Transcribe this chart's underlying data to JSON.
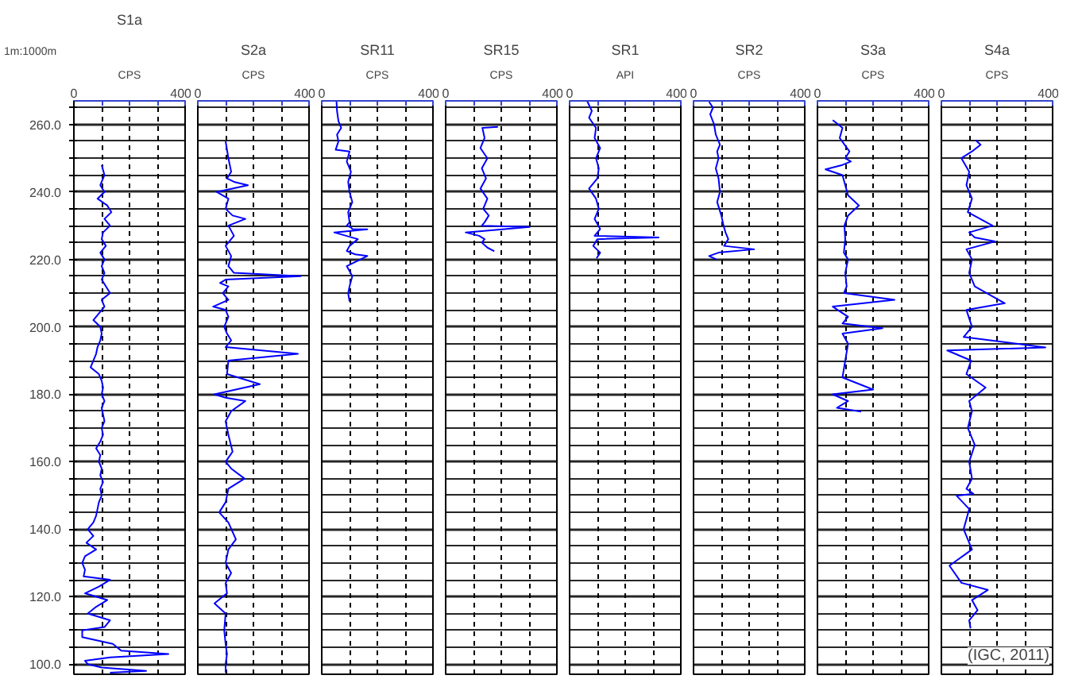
{
  "chart_data": [
    {
      "type": "line",
      "title": "S1a",
      "xlabel": "CPS",
      "xlim": [
        0,
        400
      ],
      "xticks": [
        0,
        {
          "value": 100,
          "label": null
        },
        {
          "value": 200,
          "label": null
        },
        {
          "value": 300,
          "label": null
        },
        400
      ],
      "ylim": [
        97,
        267
      ],
      "yticks": [
        {
          "value": 100,
          "label": "100.0"
        },
        {
          "value": 105,
          "label": null
        },
        {
          "value": 110,
          "label": null
        },
        {
          "value": 115,
          "label": null
        },
        {
          "value": 120,
          "label": "120.0"
        },
        {
          "value": 125,
          "label": null
        },
        {
          "value": 130,
          "label": null
        },
        {
          "value": 135,
          "label": null
        },
        {
          "value": 140,
          "label": "140.0"
        },
        {
          "value": 145,
          "label": null
        },
        {
          "value": 150,
          "label": null
        },
        {
          "value": 155,
          "label": null
        },
        {
          "value": 160,
          "label": "160.0"
        },
        {
          "value": 165,
          "label": null
        },
        {
          "value": 170,
          "label": null
        },
        {
          "value": 175,
          "label": null
        },
        {
          "value": 180,
          "label": "180.0"
        },
        {
          "value": 185,
          "label": null
        },
        {
          "value": 190,
          "label": null
        },
        {
          "value": 195,
          "label": null
        },
        {
          "value": 200,
          "label": "200.0"
        },
        {
          "value": 205,
          "label": null
        },
        {
          "value": 210,
          "label": null
        },
        {
          "value": 215,
          "label": null
        },
        {
          "value": 220,
          "label": "220.0"
        },
        {
          "value": 225,
          "label": null
        },
        {
          "value": 230,
          "label": null
        },
        {
          "value": 235,
          "label": null
        },
        {
          "value": 240,
          "label": "240.0"
        },
        {
          "value": 245,
          "label": null
        },
        {
          "value": 250,
          "label": null
        },
        {
          "value": 255,
          "label": null
        },
        {
          "value": 260,
          "label": "260.0"
        },
        {
          "value": 265,
          "label": null
        }
      ],
      "grid": true,
      "annotations": [
        "1m:1000m"
      ],
      "series": [
        {
          "color": "#0000ff",
          "x": [
            100,
            110,
            95,
            110,
            85,
            120,
            135,
            110,
            130,
            105,
            100,
            115,
            95,
            110,
            100,
            110,
            100,
            115,
            130,
            100,
            110,
            90,
            70,
            95,
            100,
            95,
            85,
            80,
            70,
            60,
            90,
            100,
            105,
            100,
            110,
            100,
            105,
            110,
            100,
            105,
            95,
            80,
            95,
            90,
            100,
            95,
            105,
            95,
            100,
            90,
            85,
            80,
            70,
            50,
            70,
            45,
            80,
            40,
            30,
            40,
            35,
            130,
            90,
            40,
            120,
            80,
            50,
            130,
            110,
            30,
            30,
            140,
            170,
            340,
            130,
            40,
            50,
            100,
            260,
            130
          ],
          "values": [
            248,
            245,
            242,
            240,
            238,
            236,
            234,
            232,
            230,
            228,
            226,
            224,
            222,
            220,
            218,
            216,
            214,
            212,
            210,
            208,
            206,
            204,
            202,
            200,
            198,
            196,
            194,
            192,
            190,
            188,
            186,
            184,
            182,
            180,
            178,
            176,
            174,
            172,
            170,
            168,
            166,
            164,
            162,
            160,
            158,
            156,
            154,
            152,
            150,
            148,
            146,
            144,
            142,
            140,
            138,
            136,
            134,
            132,
            130,
            128,
            126,
            125,
            123,
            121,
            119,
            117,
            115,
            113,
            111,
            110,
            108,
            106,
            104,
            103,
            102,
            101,
            100,
            99,
            98,
            97.5
          ]
        }
      ]
    },
    {
      "type": "line",
      "title": "S2a",
      "xlabel": "CPS",
      "xlim": [
        0,
        400
      ],
      "xticks": [
        0,
        {
          "value": 100,
          "label": null
        },
        {
          "value": 200,
          "label": null
        },
        {
          "value": 300,
          "label": null
        },
        400
      ],
      "ylim": [
        97,
        267
      ],
      "yticks": [
        100,
        105,
        110,
        115,
        120,
        125,
        130,
        135,
        140,
        145,
        150,
        155,
        160,
        165,
        170,
        175,
        180,
        185,
        190,
        195,
        200,
        205,
        210,
        215,
        220,
        225,
        230,
        235,
        240,
        245,
        250,
        255,
        260,
        265
      ],
      "grid": true,
      "tick_labels": "x",
      "series": [
        {
          "color": "#0000ff",
          "x": [
            100,
            110,
            120,
            105,
            130,
            180,
            68,
            110,
            100,
            125,
            171,
            110,
            130,
            100,
            120,
            110,
            130,
            370,
            100,
            80,
            110,
            90,
            110,
            55,
            100,
            110,
            95,
            105,
            120,
            100,
            360,
            110,
            105,
            223,
            60,
            100,
            171,
            120,
            100,
            110,
            125,
            100,
            120,
            168,
            110,
            100,
            77,
            110,
            137,
            110,
            100,
            120,
            100,
            105,
            60,
            100,
            95,
            100,
            105,
            100,
            100
          ],
          "values": [
            255,
            250,
            246,
            244,
            243,
            242,
            240,
            238,
            235,
            233,
            232,
            230,
            227,
            224,
            221,
            218,
            216,
            215,
            214,
            213,
            212,
            210,
            208,
            206,
            205,
            203,
            200,
            198,
            196,
            194,
            192,
            190,
            186,
            183,
            180,
            179,
            178,
            175,
            172,
            168,
            163,
            160,
            158,
            155,
            152,
            148,
            145,
            142,
            137,
            134,
            130,
            127,
            124,
            121,
            118,
            115,
            110,
            106,
            103,
            100,
            97.5
          ]
        }
      ]
    },
    {
      "type": "line",
      "title": "SR11",
      "xlabel": "CPS",
      "xlim": [
        0,
        400
      ],
      "xticks": [
        0,
        {
          "value": 100,
          "label": null
        },
        {
          "value": 200,
          "label": null
        },
        {
          "value": 300,
          "label": null
        },
        400
      ],
      "ylim": [
        97,
        267
      ],
      "yticks": [
        100,
        105,
        110,
        115,
        120,
        125,
        130,
        135,
        140,
        145,
        150,
        155,
        160,
        165,
        170,
        175,
        180,
        185,
        190,
        195,
        200,
        205,
        210,
        215,
        220,
        225,
        230,
        235,
        240,
        245,
        250,
        255,
        260,
        265
      ],
      "grid": true,
      "tick_labels": "x",
      "series": [
        {
          "color": "#0000ff",
          "x": [
            53,
            55,
            60,
            70,
            55,
            60,
            50,
            100,
            90,
            105,
            95,
            100,
            110,
            95,
            100,
            90,
            105,
            110,
            164,
            45,
            130,
            100,
            90,
            120,
            164,
            90,
            110,
            100,
            95,
            100
          ],
          "values": [
            267,
            264,
            261,
            259,
            257,
            255,
            252.5,
            252,
            249,
            246,
            243,
            240,
            237,
            234,
            231,
            230,
            229.5,
            229,
            228.9,
            228,
            226,
            224,
            222.5,
            221.5,
            221,
            218,
            215,
            212,
            210,
            207.5
          ]
        }
      ]
    },
    {
      "type": "line",
      "title": "SR15",
      "xlabel": "CPS",
      "xlim": [
        0,
        400
      ],
      "xticks": [
        0,
        {
          "value": 100,
          "label": null
        },
        {
          "value": 200,
          "label": null
        },
        {
          "value": 300,
          "label": null
        },
        400
      ],
      "ylim": [
        97,
        267
      ],
      "yticks": [
        100,
        105,
        110,
        115,
        120,
        125,
        130,
        135,
        140,
        145,
        150,
        155,
        160,
        165,
        170,
        175,
        180,
        185,
        190,
        195,
        200,
        205,
        210,
        215,
        220,
        225,
        230,
        235,
        240,
        245,
        250,
        255,
        260,
        265
      ],
      "grid": true,
      "tick_labels": "x",
      "series": [
        {
          "color": "#0000ff",
          "x": [
            188,
            132,
            140,
            125,
            150,
            130,
            145,
            125,
            150,
            135,
            155,
            140,
            130,
            302,
            72,
            120,
            140,
            130,
            150,
            175
          ],
          "values": [
            259.3,
            259,
            256,
            253,
            250,
            247,
            244,
            241,
            238,
            235,
            233,
            231,
            230,
            229.6,
            228,
            227,
            226,
            225,
            223.5,
            222.4
          ]
        }
      ]
    },
    {
      "type": "line",
      "title": "SR1",
      "xlabel": "API",
      "xlim": [
        0,
        400
      ],
      "xticks": [
        0,
        {
          "value": 100,
          "label": null
        },
        {
          "value": 200,
          "label": null
        },
        {
          "value": 300,
          "label": null
        },
        400
      ],
      "ylim": [
        97,
        267
      ],
      "yticks": [
        100,
        105,
        110,
        115,
        120,
        125,
        130,
        135,
        140,
        145,
        150,
        155,
        160,
        165,
        170,
        175,
        180,
        185,
        190,
        195,
        200,
        205,
        210,
        215,
        220,
        225,
        230,
        235,
        240,
        245,
        250,
        255,
        260,
        265
      ],
      "grid": true,
      "tick_labels": "x",
      "series": [
        {
          "color": "#0000ff",
          "x": [
            63,
            80,
            70,
            95,
            90,
            110,
            95,
            105,
            100,
            70,
            95,
            105,
            90,
            110,
            100,
            90,
            320,
            100,
            85,
            110,
            97
          ],
          "values": [
            267,
            264,
            262,
            259,
            256,
            253,
            250,
            247,
            244,
            241,
            238,
            235,
            232,
            229,
            228,
            227,
            226.5,
            226,
            224,
            222,
            220.3
          ]
        }
      ]
    },
    {
      "type": "line",
      "title": "SR2",
      "xlabel": "CPS",
      "xlim": [
        0,
        400
      ],
      "xticks": [
        0,
        {
          "value": 100,
          "label": null
        },
        {
          "value": 200,
          "label": null
        },
        {
          "value": 300,
          "label": null
        },
        400
      ],
      "ylim": [
        97,
        267
      ],
      "yticks": [
        100,
        105,
        110,
        115,
        120,
        125,
        130,
        135,
        140,
        145,
        150,
        155,
        160,
        165,
        170,
        175,
        180,
        185,
        190,
        195,
        200,
        205,
        210,
        215,
        220,
        225,
        230,
        235,
        240,
        245,
        250,
        255,
        260,
        265
      ],
      "grid": true,
      "tick_labels": "x",
      "series": [
        {
          "color": "#0000ff",
          "x": [
            56,
            70,
            60,
            74,
            80,
            95,
            85,
            90,
            80,
            90,
            95,
            85,
            100,
            108,
            115,
            125,
            110,
            218,
            90,
            56,
            82
          ],
          "values": [
            266.7,
            265,
            263,
            260,
            257,
            254,
            252,
            250,
            247,
            244,
            240,
            237,
            233,
            230,
            228,
            226,
            224,
            223,
            222,
            221,
            220
          ]
        }
      ]
    },
    {
      "type": "line",
      "title": "S3a",
      "xlabel": "CPS",
      "xlim": [
        0,
        400
      ],
      "xticks": [
        0,
        {
          "value": 100,
          "label": null
        },
        {
          "value": 200,
          "label": null
        },
        {
          "value": 300,
          "label": null
        },
        400
      ],
      "ylim": [
        97,
        267
      ],
      "yticks": [
        100,
        105,
        110,
        115,
        120,
        125,
        130,
        135,
        140,
        145,
        150,
        155,
        160,
        165,
        170,
        175,
        180,
        185,
        190,
        195,
        200,
        205,
        210,
        215,
        220,
        225,
        230,
        235,
        240,
        245,
        250,
        255,
        260,
        265
      ],
      "grid": true,
      "tick_labels": "x",
      "series": [
        {
          "color": "#0000ff",
          "x": [
            55,
            90,
            80,
            115,
            100,
            120,
            90,
            29,
            90,
            100,
            110,
            149,
            110,
            97,
            100,
            95,
            110,
            100,
            105,
            95,
            277,
            55,
            110,
            90,
            234,
            90,
            110,
            100,
            90,
            200,
            55,
            110,
            70,
            157
          ],
          "values": [
            261.3,
            259,
            256,
            252,
            250,
            249,
            248,
            246.7,
            245,
            242,
            239,
            236,
            233,
            230,
            226,
            222,
            220,
            216,
            212,
            210,
            208,
            206,
            203,
            201,
            199.6,
            198,
            195,
            190,
            185,
            181.4,
            180,
            178,
            176,
            174.9
          ]
        }
      ]
    },
    {
      "type": "line",
      "title": "S4a",
      "xlabel": "CPS",
      "xlim": [
        0,
        400
      ],
      "xticks": [
        0,
        {
          "value": 100,
          "label": null
        },
        {
          "value": 200,
          "label": null
        },
        {
          "value": 300,
          "label": null
        },
        400
      ],
      "ylim": [
        97,
        267
      ],
      "yticks": [
        100,
        105,
        110,
        115,
        120,
        125,
        130,
        135,
        140,
        145,
        150,
        155,
        160,
        165,
        170,
        175,
        180,
        185,
        190,
        195,
        200,
        205,
        210,
        215,
        220,
        225,
        230,
        235,
        240,
        245,
        250,
        255,
        260,
        265
      ],
      "grid": true,
      "tick_labels": "x",
      "annotations": [
        "(IGC, 2011)"
      ],
      "series": [
        {
          "color": "#0000ff",
          "x": [
            124,
            141,
            110,
            72,
            100,
            90,
            110,
            95,
            184,
            100,
            120,
            193,
            90,
            110,
            100,
            120,
            228,
            90,
            110,
            80,
            374,
            21,
            107,
            90,
            159,
            100,
            110,
            95,
            120,
            100,
            110,
            90,
            115,
            55,
            100,
            80,
            110,
            29,
            72,
            167,
            110,
            130,
            100,
            105
          ],
          "values": [
            255.3,
            254,
            252,
            250,
            246,
            242,
            238,
            234,
            230,
            228,
            226.5,
            225.3,
            223,
            220,
            216,
            212,
            207,
            205,
            200,
            197,
            193.9,
            193,
            190,
            186,
            182,
            178,
            175,
            170,
            165,
            160,
            155,
            152,
            150.5,
            149.9,
            146,
            140,
            134,
            129.2,
            124.1,
            122,
            119,
            116,
            113,
            110.6
          ]
        }
      ]
    }
  ]
}
